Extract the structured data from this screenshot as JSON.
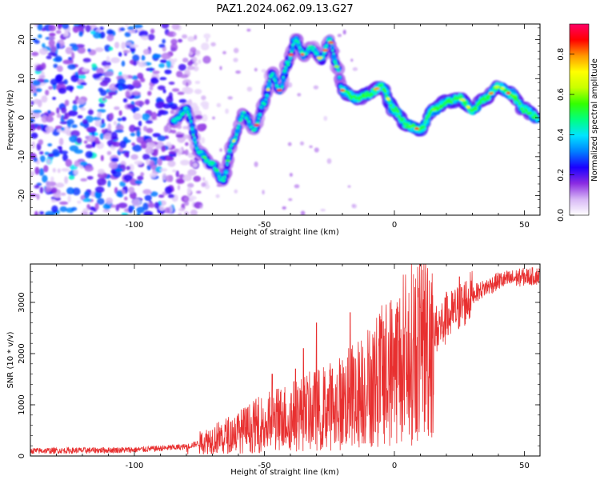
{
  "figure": {
    "title": "PAZ1.2024.062.09.13.G27"
  },
  "chart_data": [
    {
      "type": "heatmap",
      "title": "PAZ1.2024.062.09.13.G27",
      "xlabel": "Height of straight line (km)",
      "ylabel": "Frequency (Hz)",
      "xlim": [
        -140,
        56
      ],
      "ylim": [
        -25,
        24
      ],
      "xticks": [
        -100,
        -50,
        0,
        50
      ],
      "yticks": [
        -20,
        -10,
        0,
        10,
        20
      ],
      "colorbar": {
        "label": "Normalized spectral amplitude",
        "range": [
          0,
          0.95
        ],
        "ticks": [
          "0.0",
          "0.2",
          "0.4",
          "0.6",
          "0.8"
        ],
        "colors": [
          "#ffffff",
          "#d7b8f5",
          "#8a2be2",
          "#1a00ff",
          "#0080ff",
          "#00e5ff",
          "#00ff80",
          "#33ff00",
          "#c8ff00",
          "#ffff00",
          "#ff9900",
          "#ff0000",
          "#ff0066"
        ]
      },
      "ridge": {
        "x": [
          -85,
          -80,
          -75,
          -70,
          -66,
          -62,
          -58,
          -54,
          -50,
          -47,
          -44,
          -41,
          -38,
          -35,
          -32,
          -28,
          -25,
          -22,
          -20,
          -15,
          -10,
          -5,
          0,
          5,
          10,
          15,
          20,
          25,
          30,
          35,
          40,
          45,
          50,
          55
        ],
        "freq": [
          -1,
          2,
          -9,
          -12,
          -16,
          -6,
          1,
          -3,
          4,
          11,
          7,
          14,
          20,
          16,
          18,
          15,
          20,
          13,
          7,
          5,
          6,
          8,
          2,
          -2,
          -3,
          2,
          4,
          5,
          2,
          5,
          8,
          6,
          2,
          0
        ]
      }
    },
    {
      "type": "line",
      "xlabel": "Height of straight line (km)",
      "ylabel": "SNR (10 * v/v)",
      "xlim": [
        -140,
        56
      ],
      "ylim": [
        0,
        3750
      ],
      "xticks": [
        -100,
        -50,
        0,
        50
      ],
      "yticks": [
        0,
        1000,
        2000,
        3000
      ],
      "color": "#e83030",
      "trend": {
        "x": [
          -140,
          -100,
          -80,
          -70,
          -60,
          -50,
          -40,
          -30,
          -20,
          -10,
          0,
          10,
          20,
          30,
          40,
          50,
          56
        ],
        "y": [
          100,
          120,
          180,
          330,
          470,
          650,
          780,
          900,
          1050,
          1350,
          1750,
          2200,
          2650,
          3150,
          3420,
          3500,
          3520
        ]
      },
      "spikes": {
        "x": [
          -47,
          -38,
          -35,
          -30,
          -17,
          -10,
          -5,
          4,
          10,
          15,
          20,
          25
        ],
        "y": [
          1600,
          1700,
          2100,
          2600,
          2800,
          2000,
          2300,
          2500,
          2900,
          1200,
          3200,
          3500
        ]
      }
    }
  ]
}
